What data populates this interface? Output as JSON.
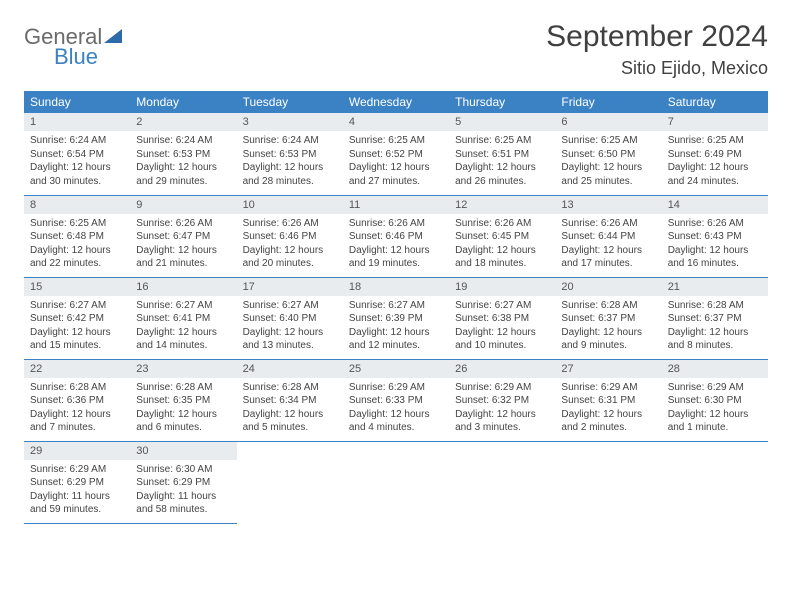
{
  "logo": {
    "line1": "General",
    "line2": "Blue"
  },
  "header": {
    "title": "September 2024",
    "location": "Sitio Ejido, Mexico"
  },
  "colors": {
    "header_bg": "#3b82c4",
    "header_fg": "#ffffff",
    "daynum_bg": "#e8ecef",
    "rule": "#3b82c4",
    "text": "#444444",
    "logo_gray": "#6b6b6b",
    "logo_blue": "#3b82c4"
  },
  "weekdays": [
    "Sunday",
    "Monday",
    "Tuesday",
    "Wednesday",
    "Thursday",
    "Friday",
    "Saturday"
  ],
  "grid": {
    "rows": 5,
    "cols": 7
  },
  "days": [
    {
      "n": 1,
      "sunrise": "6:24 AM",
      "sunset": "6:54 PM",
      "daylight": "12 hours and 30 minutes."
    },
    {
      "n": 2,
      "sunrise": "6:24 AM",
      "sunset": "6:53 PM",
      "daylight": "12 hours and 29 minutes."
    },
    {
      "n": 3,
      "sunrise": "6:24 AM",
      "sunset": "6:53 PM",
      "daylight": "12 hours and 28 minutes."
    },
    {
      "n": 4,
      "sunrise": "6:25 AM",
      "sunset": "6:52 PM",
      "daylight": "12 hours and 27 minutes."
    },
    {
      "n": 5,
      "sunrise": "6:25 AM",
      "sunset": "6:51 PM",
      "daylight": "12 hours and 26 minutes."
    },
    {
      "n": 6,
      "sunrise": "6:25 AM",
      "sunset": "6:50 PM",
      "daylight": "12 hours and 25 minutes."
    },
    {
      "n": 7,
      "sunrise": "6:25 AM",
      "sunset": "6:49 PM",
      "daylight": "12 hours and 24 minutes."
    },
    {
      "n": 8,
      "sunrise": "6:25 AM",
      "sunset": "6:48 PM",
      "daylight": "12 hours and 22 minutes."
    },
    {
      "n": 9,
      "sunrise": "6:26 AM",
      "sunset": "6:47 PM",
      "daylight": "12 hours and 21 minutes."
    },
    {
      "n": 10,
      "sunrise": "6:26 AM",
      "sunset": "6:46 PM",
      "daylight": "12 hours and 20 minutes."
    },
    {
      "n": 11,
      "sunrise": "6:26 AM",
      "sunset": "6:46 PM",
      "daylight": "12 hours and 19 minutes."
    },
    {
      "n": 12,
      "sunrise": "6:26 AM",
      "sunset": "6:45 PM",
      "daylight": "12 hours and 18 minutes."
    },
    {
      "n": 13,
      "sunrise": "6:26 AM",
      "sunset": "6:44 PM",
      "daylight": "12 hours and 17 minutes."
    },
    {
      "n": 14,
      "sunrise": "6:26 AM",
      "sunset": "6:43 PM",
      "daylight": "12 hours and 16 minutes."
    },
    {
      "n": 15,
      "sunrise": "6:27 AM",
      "sunset": "6:42 PM",
      "daylight": "12 hours and 15 minutes."
    },
    {
      "n": 16,
      "sunrise": "6:27 AM",
      "sunset": "6:41 PM",
      "daylight": "12 hours and 14 minutes."
    },
    {
      "n": 17,
      "sunrise": "6:27 AM",
      "sunset": "6:40 PM",
      "daylight": "12 hours and 13 minutes."
    },
    {
      "n": 18,
      "sunrise": "6:27 AM",
      "sunset": "6:39 PM",
      "daylight": "12 hours and 12 minutes."
    },
    {
      "n": 19,
      "sunrise": "6:27 AM",
      "sunset": "6:38 PM",
      "daylight": "12 hours and 10 minutes."
    },
    {
      "n": 20,
      "sunrise": "6:28 AM",
      "sunset": "6:37 PM",
      "daylight": "12 hours and 9 minutes."
    },
    {
      "n": 21,
      "sunrise": "6:28 AM",
      "sunset": "6:37 PM",
      "daylight": "12 hours and 8 minutes."
    },
    {
      "n": 22,
      "sunrise": "6:28 AM",
      "sunset": "6:36 PM",
      "daylight": "12 hours and 7 minutes."
    },
    {
      "n": 23,
      "sunrise": "6:28 AM",
      "sunset": "6:35 PM",
      "daylight": "12 hours and 6 minutes."
    },
    {
      "n": 24,
      "sunrise": "6:28 AM",
      "sunset": "6:34 PM",
      "daylight": "12 hours and 5 minutes."
    },
    {
      "n": 25,
      "sunrise": "6:29 AM",
      "sunset": "6:33 PM",
      "daylight": "12 hours and 4 minutes."
    },
    {
      "n": 26,
      "sunrise": "6:29 AM",
      "sunset": "6:32 PM",
      "daylight": "12 hours and 3 minutes."
    },
    {
      "n": 27,
      "sunrise": "6:29 AM",
      "sunset": "6:31 PM",
      "daylight": "12 hours and 2 minutes."
    },
    {
      "n": 28,
      "sunrise": "6:29 AM",
      "sunset": "6:30 PM",
      "daylight": "12 hours and 1 minute."
    },
    {
      "n": 29,
      "sunrise": "6:29 AM",
      "sunset": "6:29 PM",
      "daylight": "11 hours and 59 minutes."
    },
    {
      "n": 30,
      "sunrise": "6:30 AM",
      "sunset": "6:29 PM",
      "daylight": "11 hours and 58 minutes."
    }
  ],
  "labels": {
    "sunrise": "Sunrise:",
    "sunset": "Sunset:",
    "daylight": "Daylight:"
  }
}
